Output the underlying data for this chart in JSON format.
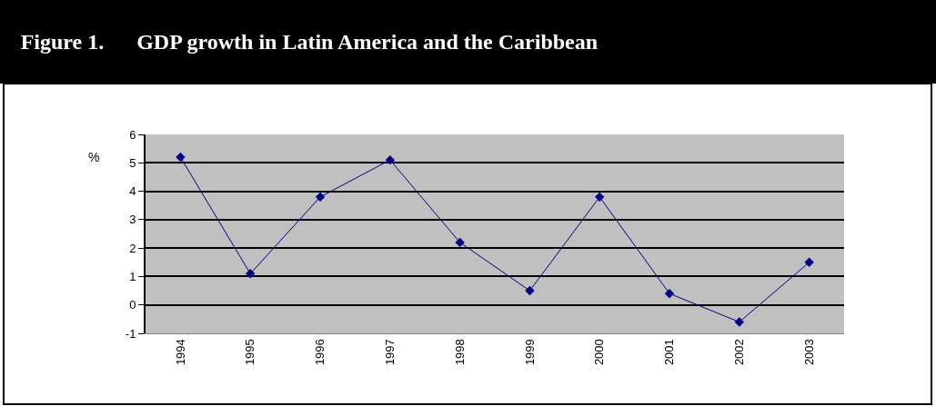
{
  "chart_data": {
    "type": "line",
    "title": "Figure 1.      GDP growth in Latin America and the Caribbean",
    "ylabel": "%",
    "categories": [
      "1994",
      "1995",
      "1996",
      "1997",
      "1998",
      "1999",
      "2000",
      "2001",
      "2002",
      "2003"
    ],
    "series": [
      {
        "color": "#000080",
        "values": [
          5.2,
          1.1,
          3.8,
          5.1,
          2.2,
          0.5,
          3.8,
          0.4,
          -0.6,
          1.5
        ]
      }
    ],
    "ylim": [
      -1,
      6
    ],
    "yticks": [
      -1,
      0,
      1,
      2,
      3,
      4,
      5,
      6
    ],
    "grid": "y",
    "marker": "diamond",
    "line_style": "solid"
  }
}
